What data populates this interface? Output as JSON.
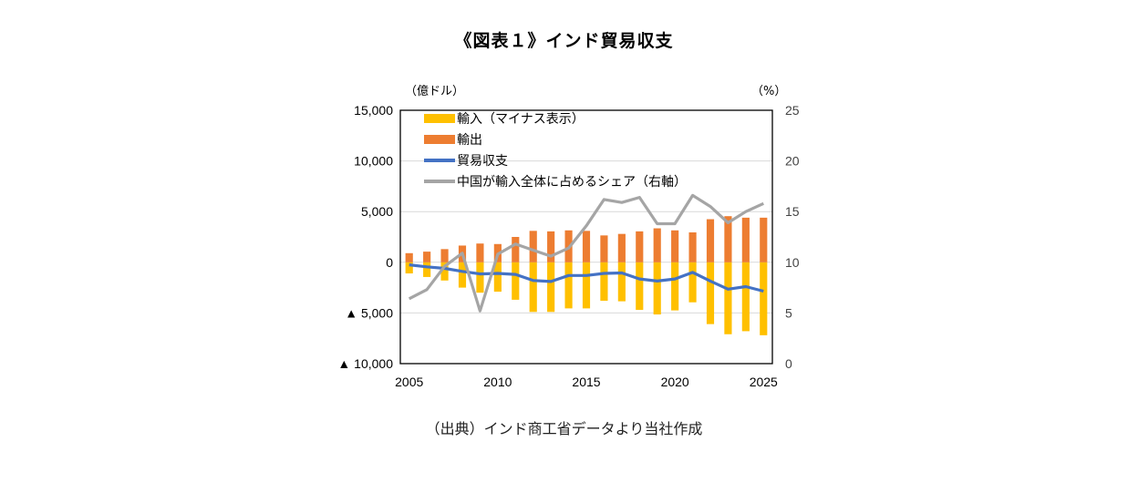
{
  "title": "《図表１》インド貿易収支",
  "source": "（出典）インド商工省データより当社作成",
  "chart_data": {
    "type": "bar",
    "title": "《図表１》インド貿易収支",
    "ylabel": "（億ドル）",
    "y2label": "（%）",
    "xlabel": "",
    "x": [
      2005,
      2006,
      2007,
      2008,
      2009,
      2010,
      2011,
      2012,
      2013,
      2014,
      2015,
      2016,
      2017,
      2018,
      2019,
      2020,
      2021,
      2022,
      2023,
      2024,
      2025
    ],
    "x_tick_labels": [
      "2005",
      "2010",
      "2015",
      "2020",
      "2025"
    ],
    "x_ticks": [
      2005,
      2010,
      2015,
      2020,
      2025
    ],
    "ylim": [
      -10000,
      15000
    ],
    "y_ticks": [
      15000,
      10000,
      5000,
      0,
      -5000,
      -10000
    ],
    "y_tick_labels": [
      "15,000",
      "10,000",
      "5,000",
      "0",
      "▲ 5,000",
      "▲ 10,000"
    ],
    "y2lim": [
      0,
      25
    ],
    "y2_ticks": [
      25,
      20,
      15,
      10,
      5,
      0
    ],
    "y2_tick_labels": [
      "25",
      "20",
      "15",
      "10",
      "5",
      "0"
    ],
    "grid": true,
    "legend_position": "top-left",
    "series": [
      {
        "name": "輸入（マイナス表示）",
        "type": "bar",
        "axis": "left",
        "color": "#FFC000",
        "values": [
          -1100,
          -1450,
          -1800,
          -2500,
          -3000,
          -2900,
          -3700,
          -4900,
          -4900,
          -4550,
          -4550,
          -3800,
          -3850,
          -4700,
          -5150,
          -4750,
          -3950,
          -6100,
          -7100,
          -6800,
          -7200
        ]
      },
      {
        "name": "輸出",
        "type": "bar",
        "axis": "left",
        "color": "#ED7D31",
        "values": [
          900,
          1050,
          1300,
          1650,
          1850,
          1800,
          2500,
          3100,
          3050,
          3150,
          3100,
          2650,
          2800,
          3050,
          3350,
          3150,
          2950,
          4250,
          4550,
          4400,
          4400
        ]
      },
      {
        "name": "貿易収支",
        "type": "line",
        "axis": "left",
        "color": "#4472C4",
        "values": [
          -250,
          -450,
          -600,
          -900,
          -1150,
          -1100,
          -1200,
          -1800,
          -1900,
          -1300,
          -1300,
          -1100,
          -1050,
          -1650,
          -1850,
          -1650,
          -1000,
          -1850,
          -2650,
          -2400,
          -2850
        ]
      },
      {
        "name": "中国が輸入全体に占めるシェア（右軸）",
        "type": "line",
        "axis": "right",
        "color": "#A5A5A5",
        "values": [
          6.4,
          7.3,
          9.6,
          10.9,
          5.2,
          10.8,
          11.8,
          11.2,
          10.6,
          11.4,
          13.6,
          16.2,
          15.9,
          16.4,
          13.8,
          13.8,
          16.6,
          15.5,
          13.9,
          15.0,
          15.8
        ]
      }
    ]
  }
}
